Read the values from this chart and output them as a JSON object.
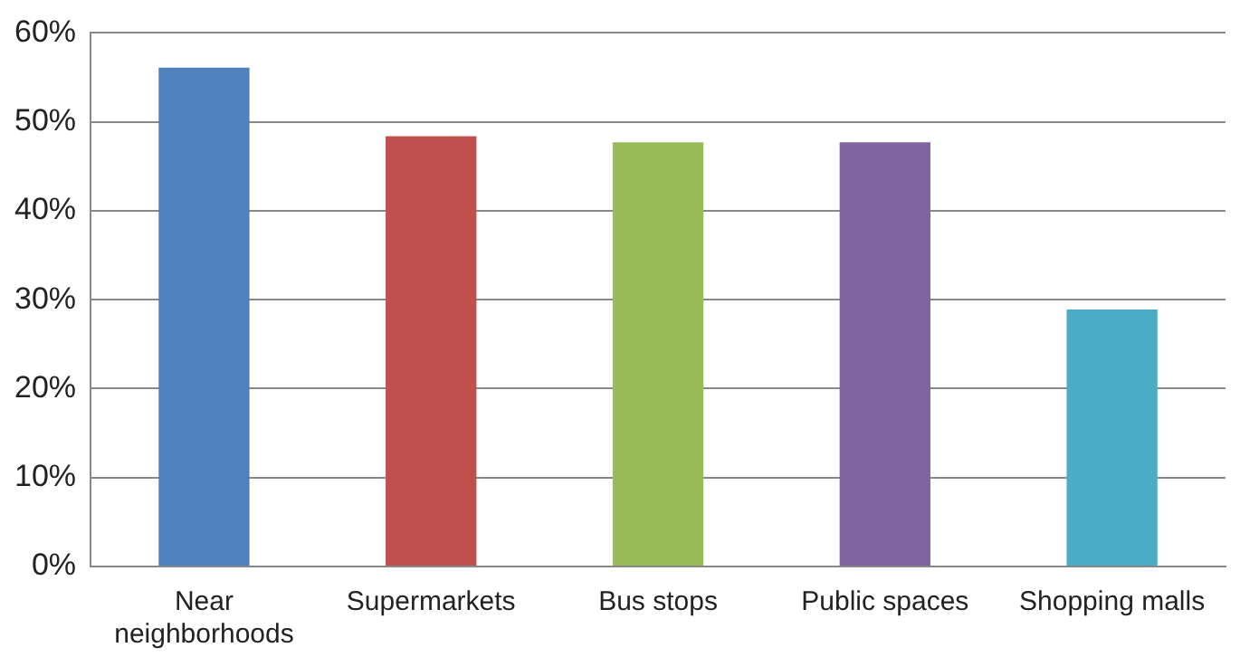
{
  "chart_data": {
    "type": "bar",
    "categories": [
      "Near neighborhoods",
      "Supermarkets",
      "Bus stops",
      "Public spaces",
      "Shopping malls"
    ],
    "values": [
      56.1,
      48.4,
      47.7,
      47.7,
      28.9
    ],
    "colors": [
      "#4f81bd",
      "#c0504d",
      "#9bbb59",
      "#8064a2",
      "#4bacc6"
    ],
    "ylim": [
      0,
      60
    ],
    "yticks": [
      {
        "value": 0,
        "label": "0%"
      },
      {
        "value": 10,
        "label": "10%"
      },
      {
        "value": 20,
        "label": "20%"
      },
      {
        "value": 30,
        "label": "30%"
      },
      {
        "value": 40,
        "label": "40%"
      },
      {
        "value": 50,
        "label": "50%"
      },
      {
        "value": 60,
        "label": "60%"
      }
    ],
    "grid": "y",
    "legend": false
  }
}
